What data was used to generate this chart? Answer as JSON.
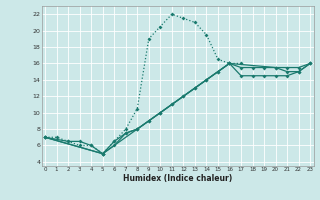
{
  "xlabel": "Humidex (Indice chaleur)",
  "bg_color": "#cce8e8",
  "grid_color": "#b8d8d8",
  "line_color": "#1a7a6e",
  "xlim": [
    -0.3,
    23.3
  ],
  "ylim": [
    3.5,
    23
  ],
  "xticks": [
    0,
    1,
    2,
    3,
    4,
    5,
    6,
    7,
    8,
    9,
    10,
    11,
    12,
    13,
    14,
    15,
    16,
    17,
    18,
    19,
    20,
    21,
    22,
    23
  ],
  "yticks": [
    4,
    6,
    8,
    10,
    12,
    14,
    16,
    18,
    20,
    22
  ],
  "series_dotted": {
    "x": [
      0,
      1,
      2,
      3,
      4,
      5,
      6,
      7,
      8,
      9,
      10,
      11,
      12,
      13,
      14,
      15,
      16,
      17
    ],
    "y": [
      7,
      7,
      6.5,
      6,
      6,
      5,
      6.5,
      8,
      10.5,
      19,
      20.5,
      22,
      21.5,
      21,
      19.5,
      16.5,
      16,
      16
    ]
  },
  "series_a": {
    "x": [
      0,
      2,
      3,
      4,
      5,
      6,
      7,
      8,
      9,
      10,
      11,
      12,
      13,
      14,
      15,
      16,
      17,
      18,
      19,
      20,
      21,
      22,
      23
    ],
    "y": [
      7,
      6.5,
      6.5,
      6,
      5,
      6.5,
      7.5,
      8,
      9,
      10,
      11,
      12,
      13,
      14,
      15,
      16,
      15.5,
      15.5,
      15.5,
      15.5,
      15.5,
      15.5,
      16
    ]
  },
  "series_b": {
    "x": [
      0,
      5,
      6,
      7,
      8,
      9,
      10,
      11,
      12,
      13,
      14,
      15,
      16,
      17,
      18,
      19,
      20,
      21,
      22,
      23
    ],
    "y": [
      7,
      5,
      6,
      7.5,
      8,
      9,
      10,
      11,
      12,
      13,
      14,
      15,
      16,
      14.5,
      14.5,
      14.5,
      14.5,
      14.5,
      15,
      16
    ]
  },
  "series_c": {
    "x": [
      0,
      5,
      8,
      10,
      16,
      20,
      21,
      22,
      23
    ],
    "y": [
      7,
      5,
      8,
      10,
      16,
      15.5,
      15,
      15,
      16
    ]
  }
}
